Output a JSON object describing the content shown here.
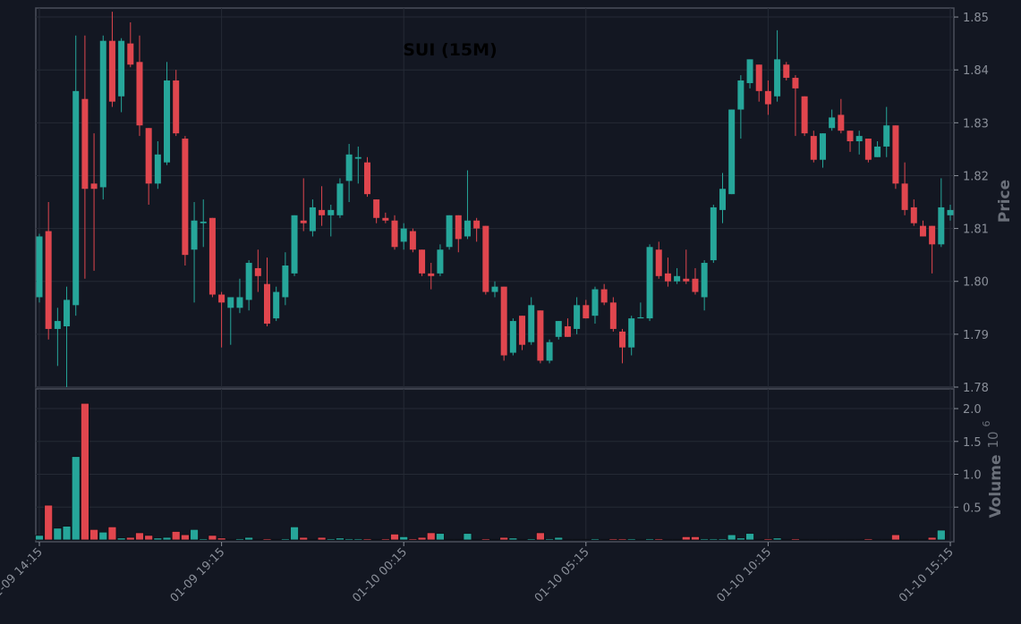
{
  "chart_data": {
    "type": "candlestick",
    "title": "SUI (15M)",
    "ylabel": "Price",
    "y2label": "Volume",
    "volume_offset": {
      "base": "10",
      "exponent": "6"
    },
    "up_color": "#26a69a",
    "down_color": "#e0464e",
    "grid": true,
    "categories": [
      "01-09 14:15",
      null,
      null,
      null,
      null,
      null,
      null,
      null,
      null,
      null,
      null,
      null,
      null,
      null,
      null,
      null,
      null,
      null,
      null,
      null,
      "01-09 19:15",
      null,
      null,
      null,
      null,
      null,
      null,
      null,
      null,
      null,
      null,
      null,
      null,
      null,
      null,
      null,
      null,
      null,
      null,
      null,
      "01-10 00:15",
      null,
      null,
      null,
      null,
      null,
      null,
      null,
      null,
      null,
      null,
      null,
      null,
      null,
      null,
      null,
      null,
      null,
      null,
      null,
      "01-10 05:15",
      null,
      null,
      null,
      null,
      null,
      null,
      null,
      null,
      null,
      null,
      null,
      null,
      null,
      null,
      null,
      null,
      null,
      null,
      null,
      "01-10 10:15",
      null,
      null,
      null,
      null,
      null,
      null,
      null,
      null,
      null,
      null,
      null,
      null,
      null,
      null,
      null,
      null,
      null,
      null,
      null,
      "01-10 15:15"
    ],
    "open": [
      1.797,
      1.8095,
      1.791,
      1.7915,
      1.7955,
      1.8345,
      1.8185,
      1.8178,
      1.8455,
      1.835,
      1.845,
      1.8415,
      1.829,
      1.8185,
      1.8225,
      1.838,
      1.827,
      1.806,
      1.811,
      1.812,
      1.7975,
      1.795,
      1.795,
      1.7965,
      1.8025,
      1.7995,
      1.793,
      1.797,
      1.8015,
      1.8115,
      1.8095,
      1.8135,
      1.8125,
      1.8125,
      1.819,
      1.8232,
      1.8225,
      1.8155,
      1.812,
      1.8115,
      1.8075,
      1.8095,
      1.806,
      1.8015,
      1.8015,
      1.8065,
      1.8125,
      1.8085,
      1.8115,
      1.8105,
      1.798,
      1.799,
      1.7865,
      1.7935,
      1.7885,
      1.7945,
      1.785,
      1.7895,
      1.7915,
      1.791,
      1.7955,
      1.7935,
      1.7985,
      1.796,
      1.7905,
      1.7875,
      1.793,
      1.793,
      1.806,
      1.8015,
      1.8,
      1.8005,
      1.8005,
      1.797,
      1.804,
      1.8135,
      1.8165,
      1.8325,
      1.8375,
      1.841,
      1.836,
      1.835,
      1.841,
      1.8385,
      1.835,
      1.8275,
      1.823,
      1.829,
      1.8315,
      1.8285,
      1.8265,
      1.827,
      1.8235,
      1.8255,
      1.8295,
      1.8185,
      1.814,
      1.8105,
      1.8105,
      1.807,
      1.8125
    ],
    "high": [
      1.809,
      1.815,
      1.795,
      1.799,
      1.8465,
      1.8465,
      1.828,
      1.8465,
      1.851,
      1.846,
      1.849,
      1.8465,
      1.829,
      1.8265,
      1.8415,
      1.84,
      1.8275,
      1.815,
      1.8155,
      1.812,
      1.798,
      1.797,
      1.8005,
      1.804,
      1.806,
      1.8045,
      1.799,
      1.8055,
      1.8125,
      1.8195,
      1.8155,
      1.818,
      1.8145,
      1.8195,
      1.826,
      1.8255,
      1.8235,
      1.8155,
      1.813,
      1.8125,
      1.811,
      1.81,
      1.806,
      1.8035,
      1.807,
      1.8125,
      1.8125,
      1.821,
      1.812,
      1.8105,
      1.8,
      1.799,
      1.793,
      1.7935,
      1.797,
      1.7945,
      1.789,
      1.7925,
      1.793,
      1.797,
      1.7965,
      1.799,
      1.7995,
      1.797,
      1.791,
      1.7935,
      1.796,
      1.807,
      1.8075,
      1.8045,
      1.8025,
      1.806,
      1.8025,
      1.804,
      1.8145,
      1.8205,
      1.8325,
      1.839,
      1.842,
      1.841,
      1.838,
      1.8475,
      1.8415,
      1.839,
      1.835,
      1.8285,
      1.828,
      1.8325,
      1.8345,
      1.8285,
      1.8285,
      1.827,
      1.8265,
      1.833,
      1.8295,
      1.8225,
      1.8155,
      1.8115,
      1.8105,
      1.8195,
      1.8145
    ],
    "low": [
      1.796,
      1.789,
      1.784,
      1.78,
      1.7935,
      1.8005,
      1.802,
      1.8155,
      1.833,
      1.832,
      1.8405,
      1.8275,
      1.8145,
      1.8175,
      1.822,
      1.8275,
      1.803,
      1.796,
      1.8065,
      1.797,
      1.7875,
      1.788,
      1.794,
      1.7945,
      1.798,
      1.7915,
      1.7925,
      1.7955,
      1.801,
      1.8095,
      1.8085,
      1.8105,
      1.8085,
      1.812,
      1.815,
      1.8185,
      1.816,
      1.811,
      1.811,
      1.806,
      1.806,
      1.8055,
      1.801,
      1.7985,
      1.801,
      1.806,
      1.8055,
      1.808,
      1.8075,
      1.7975,
      1.797,
      1.785,
      1.786,
      1.787,
      1.788,
      1.7845,
      1.7845,
      1.789,
      1.7895,
      1.79,
      1.793,
      1.792,
      1.7955,
      1.7905,
      1.7845,
      1.786,
      1.793,
      1.7925,
      1.8005,
      1.799,
      1.7995,
      1.7995,
      1.7975,
      1.7945,
      1.8035,
      1.811,
      1.8165,
      1.827,
      1.8365,
      1.834,
      1.8315,
      1.834,
      1.838,
      1.8275,
      1.8275,
      1.8225,
      1.8215,
      1.8285,
      1.828,
      1.8245,
      1.824,
      1.8225,
      1.8235,
      1.8235,
      1.8175,
      1.8125,
      1.8105,
      1.8085,
      1.8015,
      1.8065,
      1.8115
    ],
    "close": [
      1.8085,
      1.791,
      1.7925,
      1.7965,
      1.836,
      1.8175,
      1.8175,
      1.8455,
      1.834,
      1.8455,
      1.841,
      1.8295,
      1.8185,
      1.824,
      1.838,
      1.828,
      1.805,
      1.8115,
      1.8113,
      1.7975,
      1.796,
      1.797,
      1.797,
      1.8035,
      1.801,
      1.792,
      1.798,
      1.803,
      1.8125,
      1.811,
      1.814,
      1.8125,
      1.8135,
      1.8185,
      1.824,
      1.8235,
      1.8165,
      1.812,
      1.8115,
      1.8065,
      1.81,
      1.806,
      1.8015,
      1.801,
      1.806,
      1.8125,
      1.808,
      1.8115,
      1.81,
      1.798,
      1.799,
      1.786,
      1.7925,
      1.788,
      1.7955,
      1.785,
      1.7885,
      1.7925,
      1.7895,
      1.7955,
      1.793,
      1.7985,
      1.796,
      1.791,
      1.7875,
      1.793,
      1.7932,
      1.8065,
      1.801,
      1.8,
      1.801,
      1.8,
      1.798,
      1.8035,
      1.814,
      1.8175,
      1.8325,
      1.838,
      1.842,
      1.836,
      1.8335,
      1.842,
      1.8385,
      1.8365,
      1.828,
      1.823,
      1.828,
      1.831,
      1.8285,
      1.8265,
      1.8275,
      1.823,
      1.8255,
      1.8295,
      1.8185,
      1.8135,
      1.811,
      1.8085,
      1.807,
      1.814,
      1.8135
    ],
    "volume": [
      0.07,
      0.53,
      0.18,
      0.21,
      1.27,
      2.08,
      0.16,
      0.12,
      0.2,
      0.03,
      0.04,
      0.11,
      0.07,
      0.03,
      0.04,
      0.13,
      0.08,
      0.16,
      0.02,
      0.07,
      0.03,
      0.01,
      0.02,
      0.04,
      0.01,
      0.02,
      0.01,
      0.02,
      0.2,
      0.04,
      0.01,
      0.04,
      0.02,
      0.03,
      0.02,
      0.02,
      0.02,
      0.01,
      0.02,
      0.09,
      0.05,
      0.02,
      0.04,
      0.11,
      0.1,
      0.01,
      0.01,
      0.1,
      0.01,
      0.02,
      0.01,
      0.04,
      0.03,
      0.01,
      0.02,
      0.11,
      0.02,
      0.04,
      0.01,
      0.01,
      0.01,
      0.02,
      0.01,
      0.02,
      0.02,
      0.02,
      0.01,
      0.02,
      0.02,
      0.01,
      0.01,
      0.05,
      0.05,
      0.02,
      0.02,
      0.02,
      0.08,
      0.03,
      0.1,
      0.01,
      0.02,
      0.03,
      0.01,
      0.02,
      0.01,
      0.01,
      0.01,
      0.01,
      0.01,
      0.01,
      0.01,
      0.02,
      0.01,
      0.01,
      0.08,
      0.01,
      0.01,
      0.01,
      0.04,
      0.15,
      0.0
    ],
    "ylim": [
      1.78,
      1.8517
    ],
    "yticks": [
      1.78,
      1.79,
      {
        "value": 1.8,
        "label": "1.80"
      },
      1.81,
      1.82,
      1.83,
      1.84,
      1.85
    ],
    "y2lim": [
      0,
      2.3
    ],
    "y2ticks": [
      0.5,
      {
        "value": 1,
        "label": "1.0"
      },
      1.5,
      {
        "value": 2,
        "label": "2.0"
      }
    ]
  }
}
